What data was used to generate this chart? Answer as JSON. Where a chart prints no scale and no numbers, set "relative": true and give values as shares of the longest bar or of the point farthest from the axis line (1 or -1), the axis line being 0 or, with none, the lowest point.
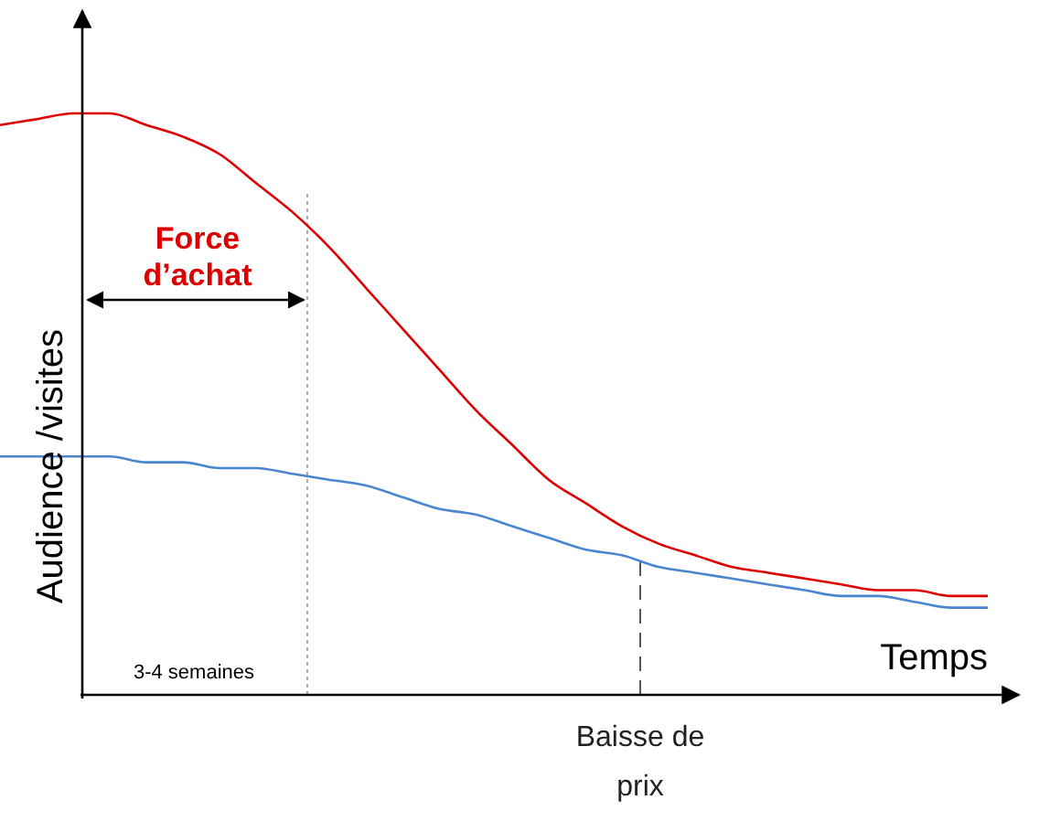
{
  "chart_data": {
    "type": "line",
    "relative": true,
    "xlabel": "Temps",
    "ylabel": "Audience /visites",
    "categories": [
      null,
      null,
      null,
      null,
      null,
      null,
      null,
      null,
      null,
      null,
      null,
      null,
      null,
      null,
      null,
      null,
      null,
      null,
      null,
      null,
      null,
      null,
      null,
      null,
      null,
      null,
      null,
      null
    ],
    "series": [
      {
        "color": "#dd0000",
        "values": [
          0.98,
          0.99,
          1,
          1,
          0.98,
          0.96,
          0.93,
          0.88,
          0.83,
          0.77,
          0.7,
          0.63,
          0.56,
          0.49,
          0.43,
          0.37,
          0.33,
          0.29,
          0.26,
          0.24,
          0.22,
          0.21,
          0.2,
          0.19,
          0.18,
          0.18,
          0.17,
          0.17
        ]
      },
      {
        "color": "#4a86d0",
        "values": [
          0.41,
          0.41,
          0.41,
          0.41,
          0.4,
          0.4,
          0.39,
          0.39,
          0.38,
          0.37,
          0.36,
          0.34,
          0.32,
          0.31,
          0.29,
          0.27,
          0.25,
          0.24,
          0.22,
          0.21,
          0.2,
          0.19,
          0.18,
          0.17,
          0.17,
          0.16,
          0.15,
          0.15
        ]
      }
    ],
    "annotations": [
      "Force\nd’achat",
      "3-4 semaines",
      "Baisse de\nprix"
    ]
  }
}
